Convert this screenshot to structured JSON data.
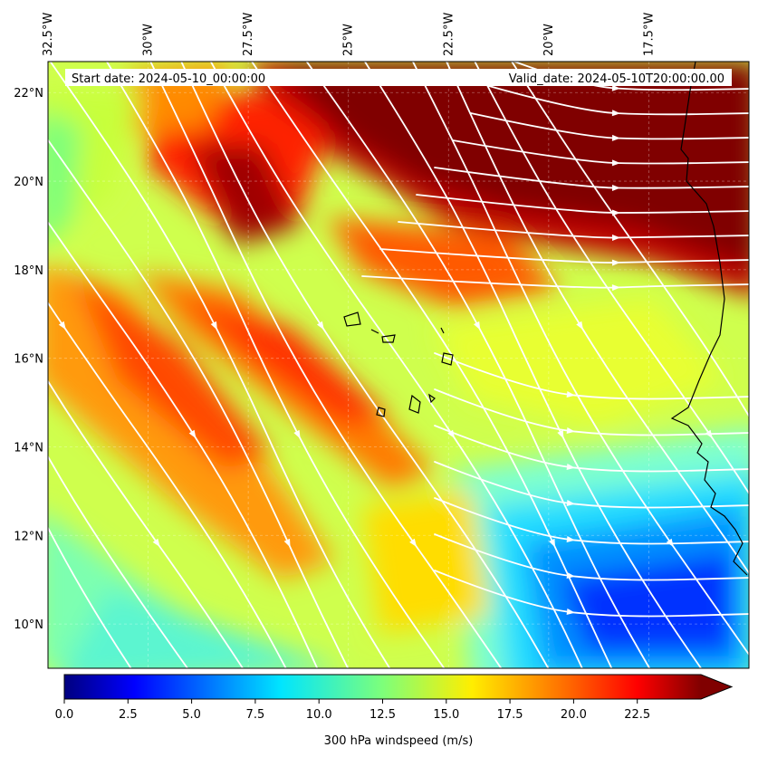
{
  "map": {
    "start_date": "Start date: 2024-05-10_00:00:00",
    "valid_date": "Valid_date: 2024-05-10T20:00:00.00",
    "lon_ticks": [
      "32.5°W",
      "30°W",
      "27.5°W",
      "25°W",
      "22.5°W",
      "20°W",
      "17.5°W"
    ],
    "lat_ticks": [
      "22°N",
      "20°N",
      "18°N",
      "16°N",
      "14°N",
      "12°N",
      "10°N"
    ],
    "extent": {
      "lon_min": -32.5,
      "lon_max": -15.0,
      "lat_min": 9.0,
      "lat_max": 22.7
    },
    "streamline_color": "#ffffff",
    "coastline_color": "#000000"
  },
  "colorbar": {
    "label": "300 hPa windspeed (m/s)",
    "ticks": [
      "0.0",
      "2.5",
      "5.0",
      "7.5",
      "10.0",
      "12.5",
      "15.0",
      "17.5",
      "20.0",
      "22.5"
    ],
    "min": 0,
    "max": 25,
    "extend": "max",
    "colormap": "jet"
  }
}
